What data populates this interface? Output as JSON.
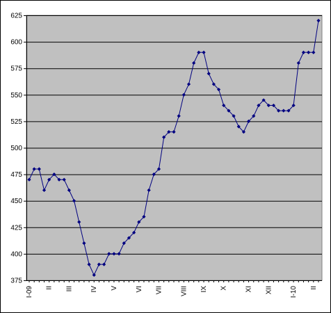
{
  "chart_data": {
    "type": "line",
    "title": "",
    "xlabel": "",
    "ylabel": "",
    "ylim": [
      375,
      625
    ],
    "yticks": [
      375,
      400,
      425,
      450,
      475,
      500,
      525,
      550,
      575,
      600,
      625
    ],
    "grid": true,
    "legend": "none",
    "x_tick_labels": [
      {
        "label": "I-09",
        "index": 0
      },
      {
        "label": "II",
        "index": 4
      },
      {
        "label": "III",
        "index": 8
      },
      {
        "label": "IV",
        "index": 13
      },
      {
        "label": "V",
        "index": 17
      },
      {
        "label": "VI",
        "index": 22
      },
      {
        "label": "VII",
        "index": 26
      },
      {
        "label": "VIII",
        "index": 31
      },
      {
        "label": "IX",
        "index": 35
      },
      {
        "label": "X",
        "index": 39
      },
      {
        "label": "XI",
        "index": 44
      },
      {
        "label": "XII",
        "index": 48
      },
      {
        "label": "I-10",
        "index": 53
      },
      {
        "label": "II",
        "index": 57
      }
    ],
    "series": [
      {
        "values": [
          470,
          480,
          480,
          460,
          470,
          475,
          470,
          470,
          460,
          450,
          430,
          410,
          390,
          380,
          390,
          390,
          400,
          400,
          400,
          410,
          415,
          420,
          430,
          435,
          460,
          475,
          480,
          510,
          515,
          515,
          530,
          550,
          560,
          580,
          590,
          590,
          570,
          560,
          555,
          540,
          535,
          530,
          520,
          515,
          525,
          530,
          540,
          545,
          540,
          540,
          535,
          535,
          535,
          540,
          580,
          590,
          590,
          590,
          620
        ]
      }
    ],
    "colors": {
      "plot_background": "#c0c0c0",
      "line": "#000080",
      "gridline": "#000000"
    }
  }
}
